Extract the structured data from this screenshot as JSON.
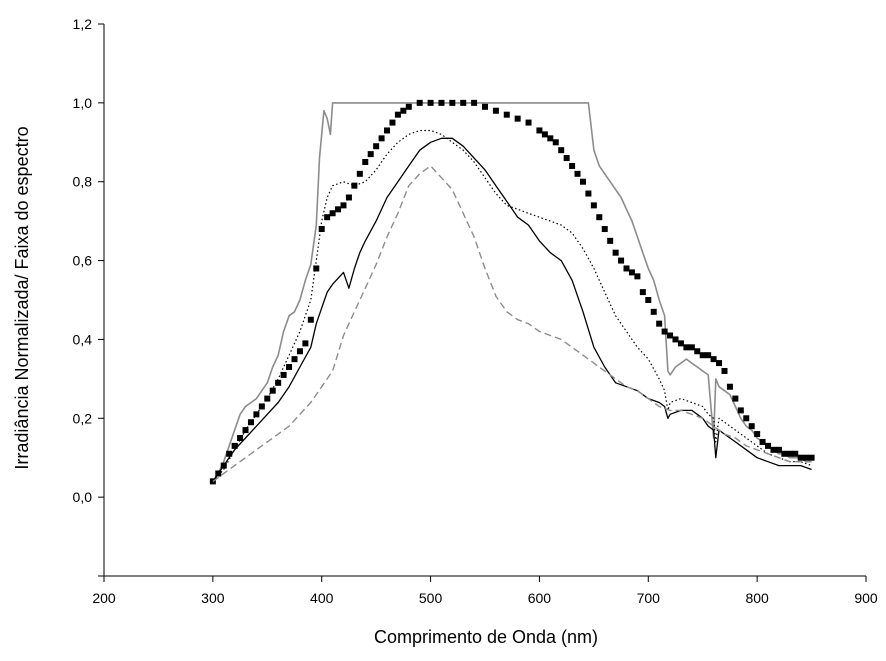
{
  "chart_data": {
    "type": "line",
    "title": "",
    "xlabel": "Comprimento de Onda (nm)",
    "ylabel": "Irradiância Normalizada/ Faixa do espectro",
    "xlim": [
      200,
      900
    ],
    "ylim": [
      -0.2,
      1.2
    ],
    "xticks": [
      "200",
      "300",
      "400",
      "500",
      "600",
      "700",
      "800",
      "900"
    ],
    "yticks": [
      "0,0",
      "0,2",
      "0,4",
      "0,6",
      "0,8",
      "1,0",
      "1,2"
    ],
    "ytick_values": [
      0.0,
      0.2,
      0.4,
      0.6,
      0.8,
      1.0,
      1.2
    ],
    "xtick_values": [
      200,
      300,
      400,
      500,
      600,
      700,
      800,
      900
    ],
    "grid": false,
    "legend": "none",
    "series": [
      {
        "style": "solid-gray",
        "color": "#8c8c8c",
        "x": [
          300,
          305,
          310,
          315,
          320,
          325,
          330,
          335,
          340,
          345,
          350,
          355,
          360,
          365,
          370,
          375,
          380,
          385,
          390,
          395,
          398,
          402,
          405,
          408,
          410,
          420,
          430,
          440,
          450,
          460,
          470,
          480,
          490,
          500,
          510,
          520,
          530,
          540,
          550,
          560,
          570,
          580,
          590,
          600,
          610,
          620,
          630,
          640,
          645,
          650,
          655,
          660,
          665,
          670,
          675,
          680,
          685,
          690,
          695,
          700,
          705,
          710,
          715,
          718,
          720,
          725,
          730,
          735,
          740,
          745,
          750,
          755,
          760,
          762,
          765,
          770,
          775,
          780,
          785,
          790,
          795,
          800,
          805,
          810,
          815,
          820,
          825,
          830,
          835,
          840,
          845,
          850
        ],
        "y": [
          0.04,
          0.06,
          0.09,
          0.13,
          0.17,
          0.21,
          0.23,
          0.24,
          0.25,
          0.27,
          0.29,
          0.33,
          0.36,
          0.42,
          0.46,
          0.47,
          0.5,
          0.55,
          0.59,
          0.69,
          0.86,
          0.98,
          0.96,
          0.92,
          1.0,
          1.0,
          1.0,
          1.0,
          1.0,
          1.0,
          1.0,
          1.0,
          1.0,
          1.0,
          1.0,
          1.0,
          1.0,
          1.0,
          1.0,
          1.0,
          1.0,
          1.0,
          1.0,
          1.0,
          1.0,
          1.0,
          1.0,
          1.0,
          1.0,
          0.88,
          0.84,
          0.82,
          0.8,
          0.78,
          0.76,
          0.73,
          0.7,
          0.66,
          0.62,
          0.58,
          0.55,
          0.5,
          0.46,
          0.32,
          0.31,
          0.33,
          0.34,
          0.35,
          0.34,
          0.33,
          0.32,
          0.31,
          0.15,
          0.3,
          0.28,
          0.27,
          0.26,
          0.23,
          0.2,
          0.18,
          0.17,
          0.15,
          0.14,
          0.13,
          0.12,
          0.11,
          0.11,
          0.1,
          0.1,
          0.1,
          0.09,
          0.09
        ]
      },
      {
        "style": "square-markers",
        "color": "#000000",
        "x": [
          300,
          305,
          310,
          315,
          320,
          325,
          330,
          335,
          340,
          345,
          350,
          355,
          360,
          365,
          370,
          375,
          380,
          385,
          390,
          395,
          400,
          405,
          410,
          415,
          420,
          425,
          430,
          435,
          440,
          445,
          450,
          455,
          460,
          465,
          470,
          475,
          480,
          490,
          500,
          510,
          520,
          530,
          540,
          550,
          560,
          570,
          580,
          590,
          600,
          605,
          610,
          615,
          620,
          625,
          630,
          635,
          640,
          645,
          650,
          655,
          660,
          665,
          670,
          675,
          680,
          685,
          690,
          695,
          700,
          705,
          710,
          715,
          720,
          725,
          730,
          735,
          740,
          745,
          750,
          755,
          760,
          765,
          770,
          775,
          780,
          785,
          790,
          795,
          800,
          805,
          810,
          815,
          820,
          825,
          830,
          835,
          840,
          845,
          850
        ],
        "y": [
          0.04,
          0.06,
          0.08,
          0.11,
          0.13,
          0.15,
          0.17,
          0.19,
          0.21,
          0.23,
          0.25,
          0.27,
          0.29,
          0.31,
          0.33,
          0.35,
          0.37,
          0.39,
          0.45,
          0.58,
          0.68,
          0.71,
          0.72,
          0.73,
          0.74,
          0.76,
          0.79,
          0.82,
          0.85,
          0.87,
          0.89,
          0.91,
          0.93,
          0.95,
          0.97,
          0.98,
          0.99,
          1.0,
          1.0,
          1.0,
          1.0,
          1.0,
          1.0,
          0.99,
          0.98,
          0.97,
          0.96,
          0.95,
          0.93,
          0.92,
          0.91,
          0.9,
          0.88,
          0.86,
          0.84,
          0.82,
          0.8,
          0.77,
          0.74,
          0.71,
          0.68,
          0.65,
          0.62,
          0.6,
          0.58,
          0.57,
          0.56,
          0.52,
          0.5,
          0.47,
          0.44,
          0.42,
          0.41,
          0.4,
          0.39,
          0.38,
          0.38,
          0.37,
          0.36,
          0.36,
          0.35,
          0.34,
          0.32,
          0.28,
          0.25,
          0.22,
          0.2,
          0.18,
          0.16,
          0.14,
          0.13,
          0.12,
          0.12,
          0.11,
          0.11,
          0.11,
          0.1,
          0.1,
          0.1
        ]
      },
      {
        "style": "dotted-black",
        "color": "#000000",
        "x": [
          300,
          310,
          320,
          330,
          340,
          350,
          360,
          370,
          380,
          390,
          395,
          400,
          405,
          410,
          420,
          430,
          440,
          450,
          460,
          470,
          480,
          490,
          500,
          510,
          520,
          530,
          540,
          550,
          560,
          570,
          580,
          590,
          600,
          610,
          620,
          630,
          640,
          650,
          660,
          670,
          680,
          690,
          700,
          710,
          715,
          718,
          720,
          730,
          740,
          750,
          755,
          760,
          762,
          765,
          770,
          780,
          790,
          800,
          810,
          820,
          830,
          840,
          850
        ],
        "y": [
          0.04,
          0.07,
          0.12,
          0.17,
          0.21,
          0.25,
          0.3,
          0.36,
          0.42,
          0.5,
          0.6,
          0.7,
          0.76,
          0.79,
          0.8,
          0.79,
          0.8,
          0.83,
          0.87,
          0.9,
          0.92,
          0.93,
          0.93,
          0.92,
          0.9,
          0.88,
          0.85,
          0.81,
          0.77,
          0.74,
          0.73,
          0.72,
          0.71,
          0.7,
          0.69,
          0.67,
          0.63,
          0.58,
          0.52,
          0.46,
          0.42,
          0.38,
          0.35,
          0.3,
          0.27,
          0.22,
          0.24,
          0.25,
          0.24,
          0.23,
          0.21,
          0.2,
          0.14,
          0.2,
          0.19,
          0.17,
          0.15,
          0.13,
          0.11,
          0.1,
          0.09,
          0.09,
          0.08
        ]
      },
      {
        "style": "solid-black",
        "color": "#000000",
        "x": [
          300,
          310,
          320,
          330,
          340,
          350,
          360,
          370,
          380,
          390,
          395,
          400,
          405,
          410,
          420,
          425,
          430,
          435,
          440,
          450,
          460,
          470,
          480,
          490,
          500,
          510,
          520,
          530,
          540,
          550,
          560,
          570,
          580,
          590,
          600,
          610,
          620,
          630,
          640,
          650,
          660,
          670,
          680,
          690,
          700,
          710,
          715,
          718,
          720,
          730,
          740,
          750,
          755,
          760,
          762,
          765,
          770,
          780,
          790,
          800,
          810,
          820,
          830,
          840,
          850
        ],
        "y": [
          0.04,
          0.08,
          0.12,
          0.15,
          0.18,
          0.21,
          0.24,
          0.28,
          0.33,
          0.38,
          0.44,
          0.48,
          0.52,
          0.54,
          0.57,
          0.53,
          0.58,
          0.62,
          0.65,
          0.7,
          0.76,
          0.8,
          0.84,
          0.88,
          0.9,
          0.91,
          0.91,
          0.89,
          0.86,
          0.83,
          0.79,
          0.75,
          0.71,
          0.69,
          0.65,
          0.62,
          0.6,
          0.55,
          0.47,
          0.38,
          0.33,
          0.29,
          0.28,
          0.27,
          0.25,
          0.24,
          0.23,
          0.2,
          0.21,
          0.22,
          0.22,
          0.2,
          0.18,
          0.17,
          0.1,
          0.17,
          0.16,
          0.14,
          0.12,
          0.1,
          0.09,
          0.08,
          0.08,
          0.08,
          0.07
        ]
      },
      {
        "style": "dashed-gray",
        "color": "#8c8c8c",
        "x": [
          300,
          310,
          320,
          330,
          340,
          350,
          360,
          370,
          380,
          390,
          400,
          410,
          420,
          430,
          440,
          450,
          460,
          470,
          480,
          490,
          500,
          510,
          520,
          530,
          540,
          550,
          560,
          570,
          580,
          590,
          600,
          610,
          620,
          630,
          640,
          650,
          660,
          670,
          680,
          690,
          700,
          710,
          720,
          730,
          740,
          750,
          760,
          770,
          780,
          790,
          800,
          810,
          820,
          830,
          840,
          850
        ],
        "y": [
          0.04,
          0.06,
          0.08,
          0.1,
          0.12,
          0.14,
          0.16,
          0.18,
          0.21,
          0.24,
          0.28,
          0.32,
          0.41,
          0.47,
          0.53,
          0.59,
          0.66,
          0.72,
          0.79,
          0.82,
          0.84,
          0.81,
          0.78,
          0.72,
          0.66,
          0.58,
          0.51,
          0.47,
          0.45,
          0.44,
          0.42,
          0.41,
          0.4,
          0.38,
          0.36,
          0.34,
          0.32,
          0.3,
          0.28,
          0.27,
          0.25,
          0.23,
          0.22,
          0.22,
          0.21,
          0.2,
          0.18,
          0.16,
          0.15,
          0.13,
          0.12,
          0.11,
          0.1,
          0.09,
          0.09,
          0.09
        ]
      }
    ]
  }
}
